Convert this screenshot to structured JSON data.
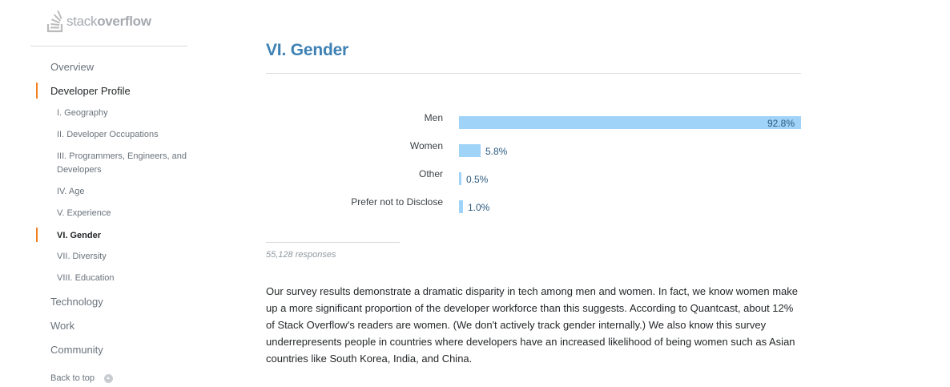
{
  "brand": {
    "logo_light": "stack",
    "logo_bold": "overflow"
  },
  "sidebar": {
    "items": [
      {
        "label": "Overview"
      },
      {
        "label": "Developer Profile"
      },
      {
        "label": "I. Geography"
      },
      {
        "label": "II. Developer Occupations"
      },
      {
        "label": "III. Programmers, Engineers, and Developers"
      },
      {
        "label": "IV. Age"
      },
      {
        "label": "V. Experience"
      },
      {
        "label": "VI. Gender"
      },
      {
        "label": "VII. Diversity"
      },
      {
        "label": "VIII. Education"
      },
      {
        "label": "Technology"
      },
      {
        "label": "Work"
      },
      {
        "label": "Community"
      }
    ],
    "back_to_top": "Back to top"
  },
  "main": {
    "title": "VI. Gender",
    "responses": "55,128 responses",
    "paragraph": "Our survey results demonstrate a dramatic disparity in tech among men and women. In fact, we know women make up a more significant proportion of the developer workforce than this suggests. According to Quantcast, about 12% of Stack Overflow's readers are women. (We don't actively track gender internally.) We also know this survey underrepresents people in countries where developers have an increased likelihood of being women such as Asian countries like South Korea, India, and China."
  },
  "chart_data": {
    "type": "bar",
    "orientation": "horizontal",
    "categories": [
      "Men",
      "Women",
      "Other",
      "Prefer not to Disclose"
    ],
    "values": [
      92.8,
      5.8,
      0.5,
      1.0
    ],
    "labels": [
      "92.8%",
      "5.8%",
      "0.5%",
      "1.0%"
    ],
    "unit": "%",
    "xlim": [
      0,
      92.8
    ],
    "bar_color": "#9fd3f8",
    "label_color": "#2b5a80"
  },
  "colors": {
    "accent": "#f48024",
    "title": "#3e81b4"
  }
}
